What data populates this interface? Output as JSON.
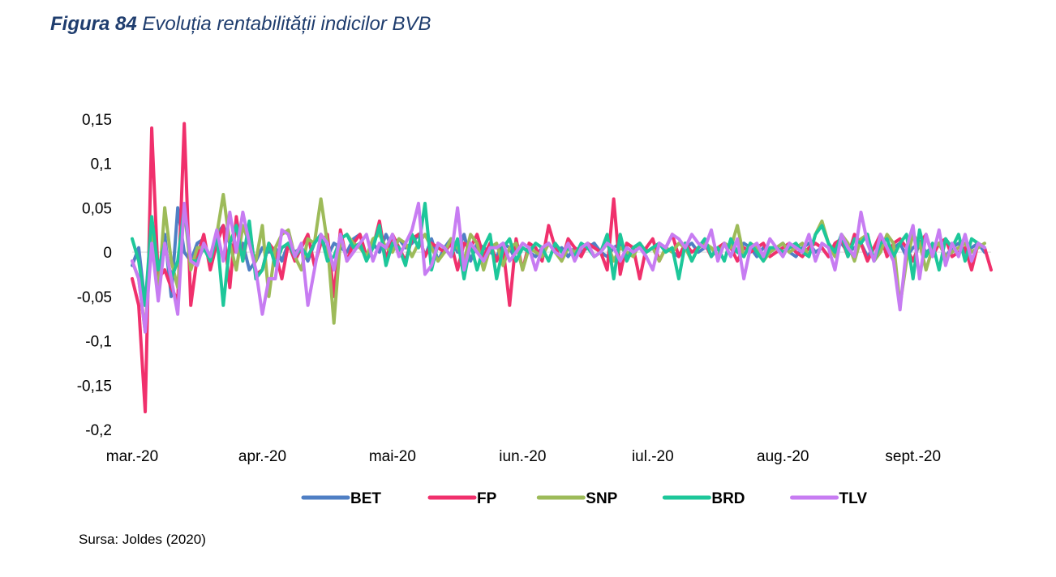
{
  "caption": {
    "label": "Figura 84",
    "title": "Evoluția rentabilității indicilor BVB"
  },
  "source": "Sursa: Joldes (2020)",
  "chart_data": {
    "type": "line",
    "ylim": [
      -0.2,
      0.15
    ],
    "yticks": [
      0.15,
      0.1,
      0.05,
      0,
      -0.05,
      -0.1,
      -0.15,
      -0.2
    ],
    "ytick_labels": [
      "0,15",
      "0,1",
      "0,05",
      "0",
      "-0,05",
      "-0,1",
      "-0,15",
      "-0,2"
    ],
    "xtick_labels": [
      "mar.-20",
      "apr.-20",
      "mai-20",
      "iun.-20",
      "iul.-20",
      "aug.-20",
      "sept.-20"
    ],
    "xlim": [
      0,
      132
    ],
    "xticks": [
      0,
      20,
      40,
      60,
      80,
      100,
      120
    ],
    "legend_position": "bottom",
    "series": [
      {
        "name": "BET",
        "color": "#4f7fc4",
        "values": [
          -0.015,
          0.005,
          -0.06,
          0.03,
          -0.03,
          0.02,
          -0.05,
          0.05,
          0,
          -0.01,
          0.01,
          0.015,
          -0.015,
          0.02,
          0.03,
          0.01,
          0,
          0.01,
          -0.02,
          -0.01,
          0.005,
          0,
          0.005,
          -0.01,
          0.01,
          0,
          0.005,
          -0.01,
          0.01,
          0.02,
          -0.005,
          0.01,
          0.005,
          0,
          0.015,
          0.02,
          -0.005,
          0.01,
          0,
          0.02,
          0.005,
          0.015,
          0.005,
          0.01,
          0.02,
          -0.005,
          0.015,
          -0.01,
          0.005,
          0.015,
          0,
          0.02,
          -0.01,
          0.01,
          0.005,
          0,
          -0.005,
          0.01,
          0.005,
          -0.01,
          0.005,
          0,
          -0.005,
          0.005,
          0.01,
          0,
          0.005,
          -0.005,
          0.005,
          0,
          0.005,
          0.01,
          0,
          -0.005,
          0.005,
          0.01,
          -0.005,
          0.005,
          0.01,
          0,
          0.005,
          0.01,
          0.005,
          0,
          -0.005,
          0.005,
          0.01,
          0,
          0.005,
          0.005,
          -0.005,
          0.01,
          0.005,
          0,
          0.01,
          0.005,
          -0.005,
          0.005,
          0,
          0.005,
          0.01,
          0,
          -0.005,
          0.005,
          0.01,
          0,
          0.005,
          -0.005,
          0.005,
          0.01,
          0,
          0.005,
          0.01,
          -0.005,
          0.005,
          0.01,
          0,
          0.005,
          0.01,
          -0.005,
          0.005,
          0.01,
          0,
          0.005,
          0.01,
          -0.005,
          0.005,
          0.01,
          0,
          0.005,
          0.01,
          0
        ]
      },
      {
        "name": "FP",
        "color": "#f0306c",
        "values": [
          -0.03,
          -0.06,
          -0.18,
          0.14,
          -0.03,
          -0.02,
          -0.04,
          -0.055,
          0.145,
          -0.06,
          -0.005,
          0.02,
          -0.02,
          0.01,
          0.03,
          -0.04,
          0.04,
          -0.01,
          0.03,
          -0.025,
          -0.02,
          0.01,
          0,
          -0.03,
          0.01,
          -0.01,
          0.005,
          0.02,
          -0.015,
          0.01,
          0.02,
          -0.05,
          0.025,
          -0.01,
          0.01,
          0.02,
          -0.005,
          0.005,
          0.035,
          -0.01,
          0.02,
          0.005,
          -0.01,
          0.015,
          0.02,
          -0.005,
          0.01,
          0.005,
          0,
          0.01,
          -0.02,
          0.01,
          0.005,
          0.02,
          -0.005,
          0.01,
          -0.01,
          0.005,
          -0.06,
          0.015,
          -0.02,
          0.01,
          0.005,
          -0.01,
          0.03,
          0.005,
          -0.01,
          0.015,
          0.005,
          -0.005,
          0.01,
          0.005,
          0,
          -0.02,
          0.06,
          -0.025,
          0.01,
          0.005,
          -0.03,
          0.005,
          0.015,
          -0.01,
          0.005,
          0.02,
          -0.005,
          0.01,
          0,
          0.005,
          0.01,
          -0.005,
          0.005,
          0.01,
          0.005,
          -0.01,
          0.005,
          0,
          0.005,
          0.01,
          -0.005,
          0,
          0.005,
          0.01,
          0,
          -0.005,
          0.005,
          0.01,
          0.005,
          -0.005,
          0.01,
          0.015,
          -0.005,
          0.02,
          0.01,
          -0.01,
          0.005,
          0.02,
          -0.005,
          0.01,
          0.015,
          0.005,
          -0.01,
          0.01,
          0.02,
          -0.005,
          0.01,
          0.015,
          -0.005,
          0,
          0.005,
          -0.02,
          0.01,
          0.005,
          -0.02
        ]
      },
      {
        "name": "SNP",
        "color": "#9dbb59",
        "values": [
          -0.01,
          -0.03,
          -0.09,
          0.03,
          -0.05,
          0.05,
          -0.01,
          -0.04,
          0.05,
          -0.02,
          0.005,
          0.005,
          -0.01,
          0.02,
          0.065,
          0.01,
          -0.02,
          0.03,
          0.01,
          -0.01,
          0.03,
          -0.05,
          0.005,
          0.02,
          0.025,
          -0.005,
          -0.02,
          0.015,
          0.01,
          0.06,
          0.01,
          -0.08,
          0.015,
          0.02,
          0.01,
          0.005,
          -0.005,
          0.015,
          0.02,
          0.005,
          0,
          0.015,
          0.01,
          -0.005,
          0.01,
          0.02,
          0.005,
          -0.01,
          0,
          0.015,
          0.005,
          -0.01,
          0.02,
          0.01,
          -0.02,
          0.005,
          0.01,
          -0.015,
          0.005,
          0.01,
          -0.02,
          0.005,
          0,
          -0.005,
          0.01,
          0,
          -0.01,
          0.005,
          0,
          0.005,
          0.01,
          -0.005,
          0,
          0.01,
          -0.01,
          0.005,
          0,
          -0.005,
          0.01,
          0,
          0.005,
          -0.01,
          0.005,
          0,
          0.01,
          0.005,
          -0.01,
          0.005,
          0.01,
          0.005,
          -0.005,
          0.01,
          0.005,
          0.03,
          -0.005,
          0.01,
          0.005,
          -0.01,
          0,
          0.005,
          0.01,
          0,
          0.005,
          0.01,
          -0.005,
          0.02,
          0.035,
          0.01,
          -0.005,
          0.02,
          0.01,
          -0.01,
          0.015,
          0.02,
          -0.01,
          0,
          0.02,
          0.01,
          -0.06,
          -0.01,
          0.02,
          0.01,
          -0.02,
          0.005,
          0.01,
          -0.005,
          0,
          0.005,
          0.01,
          0,
          0.005,
          0.01
        ]
      },
      {
        "name": "BRD",
        "color": "#1dc79a",
        "values": [
          0.015,
          -0.01,
          -0.06,
          0.04,
          -0.02,
          0.01,
          -0.03,
          -0.01,
          0.05,
          -0.01,
          -0.01,
          0.005,
          -0.01,
          0.02,
          -0.06,
          0.01,
          0.03,
          -0.01,
          0.035,
          -0.03,
          -0.02,
          0.01,
          -0.015,
          0.005,
          0.01,
          -0.005,
          0.005,
          -0.005,
          0.01,
          0.02,
          -0.01,
          -0.005,
          0.015,
          0.02,
          0.005,
          0.01,
          -0.01,
          0.005,
          0.03,
          -0.015,
          0.01,
          0.005,
          -0.015,
          0.02,
          0.005,
          0.055,
          -0.02,
          0.01,
          0.005,
          -0.005,
          0.015,
          -0.03,
          0.01,
          -0.02,
          0.005,
          0.02,
          -0.03,
          0.005,
          0.015,
          -0.01,
          0.005,
          0,
          0.01,
          0.005,
          -0.01,
          0.01,
          0,
          0.005,
          -0.005,
          0.01,
          0.005,
          -0.005,
          0,
          0.02,
          -0.03,
          0.02,
          -0.01,
          0.005,
          0.01,
          0,
          0.005,
          0.01,
          0,
          0.005,
          -0.03,
          0.01,
          -0.01,
          0.005,
          0.015,
          -0.005,
          0.005,
          -0.01,
          0.015,
          0,
          -0.005,
          0.01,
          0,
          -0.01,
          0.005,
          0.005,
          0,
          0.005,
          0.01,
          0,
          -0.005,
          0.02,
          0.03,
          0.01,
          0,
          0.02,
          -0.005,
          0.015,
          0.01,
          0.02,
          -0.01,
          0.01,
          0.015,
          -0.005,
          0.01,
          0.02,
          -0.03,
          0.025,
          -0.005,
          0.01,
          -0.02,
          0.015,
          0.005,
          0.02,
          -0.01,
          0.015,
          0.01,
          0.005
        ]
      },
      {
        "name": "TLV",
        "color": "#c77cf2",
        "values": [
          -0.01,
          -0.03,
          -0.09,
          0.01,
          -0.055,
          0.01,
          -0.03,
          -0.07,
          0.055,
          -0.01,
          -0.015,
          0.01,
          -0.005,
          0.025,
          -0.01,
          0.045,
          0,
          0.045,
          0.01,
          -0.02,
          -0.07,
          -0.03,
          -0.03,
          0.025,
          0.02,
          -0.005,
          0.01,
          -0.06,
          -0.02,
          0.02,
          0.01,
          -0.02,
          0.02,
          -0.01,
          0,
          0.01,
          0.02,
          -0.01,
          0.01,
          0.005,
          0.02,
          -0.005,
          0.01,
          0.025,
          0.055,
          -0.025,
          -0.015,
          0.01,
          0.005,
          -0.005,
          0.05,
          -0.02,
          0.01,
          0,
          -0.01,
          0.005,
          0.005,
          0.01,
          -0.01,
          0,
          0.01,
          0.005,
          -0.02,
          0.005,
          0.01,
          0,
          -0.005,
          0.01,
          -0.01,
          0.005,
          0.01,
          -0.005,
          0,
          0.01,
          0.005,
          -0.01,
          0.005,
          0,
          0.005,
          -0.005,
          -0.02,
          0.01,
          0.005,
          0.02,
          0.015,
          0.005,
          0.02,
          0.01,
          0.005,
          0.025,
          -0.01,
          0.01,
          -0.005,
          0.015,
          -0.03,
          0.005,
          0.01,
          -0.005,
          0.015,
          0.005,
          -0.005,
          0.01,
          0.005,
          0,
          0.02,
          -0.01,
          0.01,
          0.005,
          -0.02,
          0.02,
          0.005,
          -0.005,
          0.045,
          0.01,
          -0.01,
          0.02,
          0.005,
          -0.01,
          -0.065,
          0.005,
          0.03,
          -0.03,
          0.02,
          -0.005,
          0.025,
          -0.015,
          0.01,
          -0.005,
          0.02,
          -0.01,
          0.01,
          0.005
        ]
      }
    ]
  }
}
